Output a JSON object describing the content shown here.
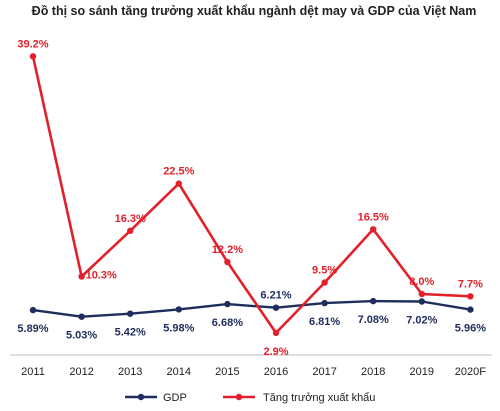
{
  "chart_data": {
    "type": "line",
    "title": "Đồ thị so sánh tăng trưởng xuất khẩu ngành dệt may  và GDP của Việt Nam",
    "categories": [
      "2011",
      "2012",
      "2013",
      "2014",
      "2015",
      "2016",
      "2017",
      "2018",
      "2019",
      "2020F"
    ],
    "ylim": [
      0,
      42
    ],
    "grid": false,
    "legend_position": "bottom",
    "series": [
      {
        "name": "GDP",
        "color": "#1f2d5c",
        "values": [
          5.89,
          5.03,
          5.42,
          5.98,
          6.68,
          6.21,
          6.81,
          7.08,
          7.02,
          5.96
        ],
        "labels": [
          "5.89%",
          "5.03%",
          "5.42%",
          "5.98%",
          "6.68%",
          "6.21%",
          "6.81%",
          "7.08%",
          "7.02%",
          "5.96%"
        ]
      },
      {
        "name": "Tăng trưởng xuất khẩu",
        "color": "#e3202a",
        "values": [
          39.2,
          10.3,
          16.3,
          22.5,
          12.2,
          2.9,
          9.5,
          16.5,
          8.0,
          7.7
        ],
        "labels": [
          "39.2%",
          "10.3%",
          "16.3%",
          "22.5%",
          "12.2%",
          "2.9%",
          "9.5%",
          "16.5%",
          "8.0%",
          "7.7%"
        ]
      }
    ]
  }
}
